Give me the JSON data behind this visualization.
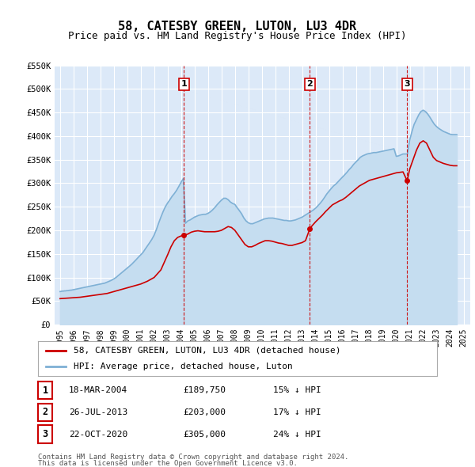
{
  "title": "58, CATESBY GREEN, LUTON, LU3 4DR",
  "subtitle": "Price paid vs. HM Land Registry's House Price Index (HPI)",
  "ylim": [
    0,
    550000
  ],
  "yticks": [
    0,
    50000,
    100000,
    150000,
    200000,
    250000,
    300000,
    350000,
    400000,
    450000,
    500000,
    550000
  ],
  "ytick_labels": [
    "£0",
    "£50K",
    "£100K",
    "£150K",
    "£200K",
    "£250K",
    "£300K",
    "£350K",
    "£400K",
    "£450K",
    "£500K",
    "£550K"
  ],
  "xlim_start": 1994.6,
  "xlim_end": 2025.5,
  "plot_bg_color": "#dce9f8",
  "grid_color": "#ffffff",
  "title_fontsize": 11,
  "subtitle_fontsize": 9,
  "sale_points": [
    {
      "label": "1",
      "date": "18-MAR-2004",
      "price": 189750,
      "x": 2004.21,
      "pct": "15%"
    },
    {
      "label": "2",
      "date": "26-JUL-2013",
      "price": 203000,
      "x": 2013.57,
      "pct": "17%"
    },
    {
      "label": "3",
      "date": "22-OCT-2020",
      "price": 305000,
      "x": 2020.81,
      "pct": "24%"
    }
  ],
  "hpi_x": [
    1995.0,
    1995.08,
    1995.17,
    1995.25,
    1995.33,
    1995.42,
    1995.5,
    1995.58,
    1995.67,
    1995.75,
    1995.83,
    1995.92,
    1996.0,
    1996.08,
    1996.17,
    1996.25,
    1996.33,
    1996.42,
    1996.5,
    1996.58,
    1996.67,
    1996.75,
    1996.83,
    1996.92,
    1997.0,
    1997.08,
    1997.17,
    1997.25,
    1997.33,
    1997.42,
    1997.5,
    1997.58,
    1997.67,
    1997.75,
    1997.83,
    1997.92,
    1998.0,
    1998.17,
    1998.33,
    1998.5,
    1998.67,
    1998.83,
    1999.0,
    1999.17,
    1999.33,
    1999.5,
    1999.67,
    1999.83,
    2000.0,
    2000.17,
    2000.33,
    2000.5,
    2000.67,
    2000.83,
    2001.0,
    2001.17,
    2001.33,
    2001.5,
    2001.67,
    2001.83,
    2002.0,
    2002.17,
    2002.33,
    2002.5,
    2002.67,
    2002.83,
    2003.0,
    2003.17,
    2003.33,
    2003.5,
    2003.67,
    2003.83,
    2004.0,
    2004.17,
    2004.33,
    2004.5,
    2004.67,
    2004.83,
    2005.0,
    2005.17,
    2005.33,
    2005.5,
    2005.67,
    2005.83,
    2006.0,
    2006.17,
    2006.33,
    2006.5,
    2006.67,
    2006.83,
    2007.0,
    2007.17,
    2007.33,
    2007.5,
    2007.67,
    2007.83,
    2008.0,
    2008.17,
    2008.33,
    2008.5,
    2008.67,
    2008.83,
    2009.0,
    2009.17,
    2009.33,
    2009.5,
    2009.67,
    2009.83,
    2010.0,
    2010.17,
    2010.33,
    2010.5,
    2010.67,
    2010.83,
    2011.0,
    2011.17,
    2011.33,
    2011.5,
    2011.67,
    2011.83,
    2012.0,
    2012.17,
    2012.33,
    2012.5,
    2012.67,
    2012.83,
    2013.0,
    2013.17,
    2013.33,
    2013.5,
    2013.67,
    2013.83,
    2014.0,
    2014.17,
    2014.33,
    2014.5,
    2014.67,
    2014.83,
    2015.0,
    2015.17,
    2015.33,
    2015.5,
    2015.67,
    2015.83,
    2016.0,
    2016.17,
    2016.33,
    2016.5,
    2016.67,
    2016.83,
    2017.0,
    2017.17,
    2017.33,
    2017.5,
    2017.67,
    2017.83,
    2018.0,
    2018.17,
    2018.33,
    2018.5,
    2018.67,
    2018.83,
    2019.0,
    2019.17,
    2019.33,
    2019.5,
    2019.67,
    2019.83,
    2020.0,
    2020.17,
    2020.33,
    2020.5,
    2020.67,
    2020.83,
    2021.0,
    2021.17,
    2021.33,
    2021.5,
    2021.67,
    2021.83,
    2022.0,
    2022.17,
    2022.33,
    2022.5,
    2022.67,
    2022.83,
    2023.0,
    2023.17,
    2023.33,
    2023.5,
    2023.67,
    2023.83,
    2024.0,
    2024.17,
    2024.33,
    2024.5
  ],
  "hpi_y": [
    70000,
    70500,
    71000,
    71000,
    71500,
    71500,
    72000,
    72000,
    72500,
    73000,
    73000,
    73500,
    74000,
    74500,
    75000,
    75500,
    76000,
    76500,
    77000,
    77500,
    78000,
    78500,
    79000,
    79500,
    80000,
    80500,
    81000,
    81500,
    82000,
    82500,
    83000,
    83500,
    84000,
    84500,
    85000,
    85500,
    86000,
    87000,
    88000,
    90000,
    92000,
    94000,
    97000,
    100000,
    104000,
    108000,
    112000,
    116000,
    120000,
    124000,
    128000,
    133000,
    138000,
    143000,
    148000,
    153000,
    160000,
    167000,
    174000,
    181000,
    190000,
    202000,
    215000,
    228000,
    240000,
    250000,
    258000,
    265000,
    272000,
    278000,
    285000,
    293000,
    302000,
    310000,
    215000,
    220000,
    222000,
    225000,
    228000,
    230000,
    232000,
    233000,
    234000,
    234000,
    236000,
    239000,
    243000,
    248000,
    254000,
    259000,
    264000,
    268000,
    268000,
    265000,
    260000,
    257000,
    255000,
    248000,
    242000,
    235000,
    226000,
    220000,
    216000,
    214000,
    214000,
    216000,
    218000,
    220000,
    222000,
    224000,
    225000,
    226000,
    226000,
    226000,
    225000,
    224000,
    223000,
    222000,
    221000,
    221000,
    220000,
    220000,
    221000,
    222000,
    224000,
    226000,
    228000,
    231000,
    234000,
    237000,
    240000,
    243000,
    247000,
    252000,
    257000,
    263000,
    270000,
    277000,
    283000,
    289000,
    294000,
    298000,
    303000,
    308000,
    313000,
    318000,
    323000,
    329000,
    334000,
    340000,
    345000,
    350000,
    355000,
    358000,
    360000,
    362000,
    363000,
    364000,
    365000,
    365000,
    366000,
    367000,
    368000,
    369000,
    370000,
    371000,
    372000,
    373000,
    357000,
    358000,
    360000,
    362000,
    362000,
    362000,
    392000,
    410000,
    425000,
    435000,
    445000,
    452000,
    455000,
    452000,
    447000,
    440000,
    432000,
    425000,
    420000,
    416000,
    413000,
    410000,
    408000,
    406000,
    404000,
    403000,
    403000,
    403000
  ],
  "red_x": [
    1995.0,
    1995.25,
    1995.5,
    1995.75,
    1996.0,
    1996.25,
    1996.5,
    1996.75,
    1997.0,
    1997.25,
    1997.5,
    1997.75,
    1998.0,
    1998.25,
    1998.5,
    1998.75,
    1999.0,
    1999.25,
    1999.5,
    1999.75,
    2000.0,
    2000.25,
    2000.5,
    2000.75,
    2001.0,
    2001.25,
    2001.5,
    2001.75,
    2002.0,
    2002.25,
    2002.5,
    2002.75,
    2003.0,
    2003.25,
    2003.5,
    2003.75,
    2004.0,
    2004.21,
    2004.5,
    2004.75,
    2005.0,
    2005.25,
    2005.5,
    2005.75,
    2006.0,
    2006.25,
    2006.5,
    2006.75,
    2007.0,
    2007.25,
    2007.5,
    2007.75,
    2008.0,
    2008.25,
    2008.5,
    2008.75,
    2009.0,
    2009.25,
    2009.5,
    2009.75,
    2010.0,
    2010.25,
    2010.5,
    2010.75,
    2011.0,
    2011.25,
    2011.5,
    2011.75,
    2012.0,
    2012.25,
    2012.5,
    2012.75,
    2013.0,
    2013.25,
    2013.57,
    2013.75,
    2014.0,
    2014.25,
    2014.5,
    2014.75,
    2015.0,
    2015.25,
    2015.5,
    2015.75,
    2016.0,
    2016.25,
    2016.5,
    2016.75,
    2017.0,
    2017.25,
    2017.5,
    2017.75,
    2018.0,
    2018.25,
    2018.5,
    2018.75,
    2019.0,
    2019.25,
    2019.5,
    2019.75,
    2020.0,
    2020.25,
    2020.5,
    2020.81,
    2021.0,
    2021.25,
    2021.5,
    2021.75,
    2022.0,
    2022.25,
    2022.5,
    2022.75,
    2023.0,
    2023.25,
    2023.5,
    2023.75,
    2024.0,
    2024.25,
    2024.5
  ],
  "red_y": [
    55000,
    55500,
    56000,
    56500,
    57000,
    57500,
    58000,
    59000,
    60000,
    61000,
    62000,
    63000,
    64000,
    65000,
    66000,
    68000,
    70000,
    72000,
    74000,
    76000,
    78000,
    80000,
    82000,
    84000,
    86000,
    89000,
    92000,
    96000,
    100000,
    108000,
    116000,
    132000,
    148000,
    165000,
    178000,
    185000,
    188000,
    189750,
    192000,
    196000,
    198000,
    199000,
    198000,
    197000,
    197000,
    197000,
    197000,
    198000,
    200000,
    204000,
    208000,
    206000,
    200000,
    190000,
    180000,
    170000,
    165000,
    165000,
    168000,
    172000,
    175000,
    178000,
    178000,
    177000,
    175000,
    173000,
    172000,
    170000,
    168000,
    168000,
    170000,
    172000,
    174000,
    178000,
    203000,
    210000,
    218000,
    225000,
    232000,
    240000,
    247000,
    254000,
    258000,
    262000,
    265000,
    270000,
    276000,
    282000,
    288000,
    294000,
    298000,
    302000,
    306000,
    308000,
    310000,
    312000,
    314000,
    316000,
    318000,
    320000,
    322000,
    323000,
    324000,
    305000,
    330000,
    350000,
    370000,
    385000,
    390000,
    385000,
    370000,
    355000,
    348000,
    345000,
    342000,
    340000,
    338000,
    337000,
    337000
  ],
  "legend_label_red": "58, CATESBY GREEN, LUTON, LU3 4DR (detached house)",
  "legend_label_blue": "HPI: Average price, detached house, Luton",
  "footer_line1": "Contains HM Land Registry data © Crown copyright and database right 2024.",
  "footer_line2": "This data is licensed under the Open Government Licence v3.0.",
  "red_color": "#cc0000",
  "blue_color": "#7eb0d5",
  "blue_fill_color": "#c5ddf0"
}
